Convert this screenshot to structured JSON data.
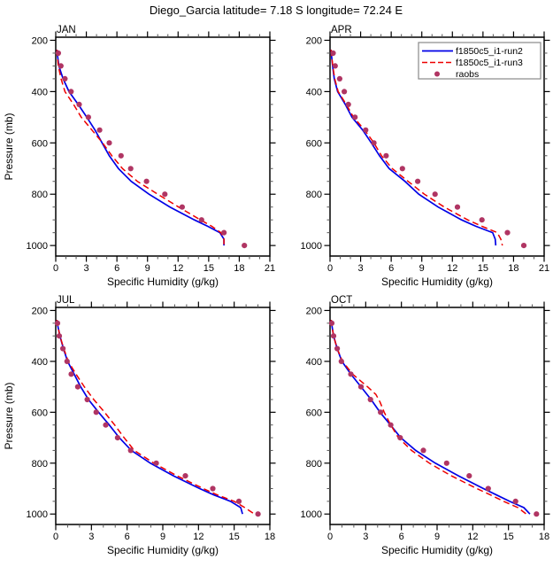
{
  "title": "Diego_Garcia  latitude= 7.18 S longitude= 72.24 E",
  "colors": {
    "run2": "#0000e6",
    "run3": "#ee0000",
    "raobs": "#b03563",
    "axis": "#000000",
    "minor_tick": "#555555",
    "legend_border": "#888888",
    "background": "#ffffff"
  },
  "legend": {
    "position": "top-right-inside-APR-panel",
    "entries": [
      {
        "label": "f1850c5_i1-run2",
        "symbol": "solid-line",
        "color_key": "run2"
      },
      {
        "label": "f1850c5_i1-run3",
        "symbol": "dashed-line",
        "color_key": "run3"
      },
      {
        "label": "raobs",
        "symbol": "dot",
        "color_key": "raobs"
      }
    ]
  },
  "chart_data": [
    {
      "type": "line",
      "title": "JAN",
      "xlabel": "Specific Humidity (g/kg)",
      "ylabel": "Pressure (mb)",
      "xlim": [
        0,
        21
      ],
      "xticks": [
        0,
        3,
        6,
        9,
        12,
        15,
        18,
        21
      ],
      "x_minor_step": 1,
      "ylim": [
        188,
        1041
      ],
      "yticks": [
        200,
        400,
        600,
        800,
        1000
      ],
      "y_minor_step": 50,
      "y_axis_note": "pressure axis inverted, grid off, box frame with outward ticks on all sides",
      "show_legend": false,
      "series": [
        {
          "name": "f1850c5_i1-run2",
          "kind": "line",
          "dash": "solid",
          "color_key": "run2",
          "pressure": [
            237,
            250,
            300,
            350,
            400,
            450,
            500,
            550,
            600,
            650,
            700,
            750,
            800,
            850,
            900,
            925,
            950,
            975,
            1000
          ],
          "q": [
            0.12,
            0.15,
            0.3,
            0.72,
            1.3,
            2.2,
            3.05,
            3.85,
            4.55,
            5.25,
            6.15,
            7.4,
            9.15,
            11.2,
            13.6,
            14.9,
            16.1,
            16.5,
            16.5
          ]
        },
        {
          "name": "f1850c5_i1-run3",
          "kind": "line",
          "dash": "dashed",
          "color_key": "run3",
          "pressure": [
            237,
            250,
            300,
            350,
            400,
            450,
            500,
            550,
            600,
            650,
            700,
            750,
            800,
            850,
            900,
            925,
            950,
            975,
            1000
          ],
          "q": [
            0.12,
            0.14,
            0.25,
            0.52,
            0.9,
            1.75,
            2.5,
            3.55,
            4.6,
            5.5,
            6.55,
            8.0,
            10.0,
            12.05,
            14.2,
            15.3,
            16.2,
            16.5,
            16.5
          ]
        },
        {
          "name": "raobs",
          "kind": "scatter",
          "color_key": "raobs",
          "pressure": [
            250,
            300,
            350,
            400,
            450,
            500,
            550,
            600,
            650,
            700,
            750,
            800,
            850,
            900,
            950,
            1000
          ],
          "q": [
            0.25,
            0.5,
            0.9,
            1.5,
            2.3,
            3.2,
            4.3,
            5.25,
            6.4,
            7.35,
            8.9,
            10.7,
            12.4,
            14.3,
            16.5,
            18.5
          ]
        }
      ]
    },
    {
      "type": "line",
      "title": "APR",
      "xlabel": "Specific Humidity (g/kg)",
      "ylabel": "Pressure (mb)",
      "xlim": [
        0,
        21
      ],
      "xticks": [
        0,
        3,
        6,
        9,
        12,
        15,
        18,
        21
      ],
      "x_minor_step": 1,
      "ylim": [
        188,
        1041
      ],
      "yticks": [
        200,
        400,
        600,
        800,
        1000
      ],
      "y_minor_step": 50,
      "y_axis_note": "pressure axis inverted, grid off, box frame with outward ticks on all sides",
      "show_legend": true,
      "series": [
        {
          "name": "f1850c5_i1-run2",
          "kind": "line",
          "dash": "solid",
          "color_key": "run2",
          "pressure": [
            237,
            250,
            300,
            350,
            400,
            450,
            500,
            550,
            600,
            650,
            700,
            750,
            800,
            850,
            900,
            925,
            950,
            975,
            1000
          ],
          "q": [
            0.1,
            0.12,
            0.25,
            0.42,
            0.75,
            1.5,
            2.15,
            3.2,
            4.05,
            4.85,
            5.8,
            7.35,
            8.7,
            10.6,
            12.9,
            14.3,
            15.95,
            16.2,
            16.25
          ]
        },
        {
          "name": "f1850c5_i1-run3",
          "kind": "line",
          "dash": "dashed",
          "color_key": "run3",
          "pressure": [
            237,
            250,
            300,
            350,
            400,
            450,
            500,
            550,
            600,
            650,
            700,
            750,
            800,
            850,
            900,
            925,
            950,
            975,
            1000
          ],
          "q": [
            0.1,
            0.12,
            0.27,
            0.46,
            0.8,
            1.6,
            2.3,
            3.4,
            4.3,
            5.05,
            6.1,
            7.65,
            9.25,
            11.2,
            13.5,
            14.9,
            16.4,
            16.75,
            16.9
          ]
        },
        {
          "name": "raobs",
          "kind": "scatter",
          "color_key": "raobs",
          "pressure": [
            250,
            300,
            350,
            400,
            450,
            500,
            550,
            600,
            650,
            700,
            750,
            800,
            850,
            900,
            950,
            1000
          ],
          "q": [
            0.3,
            0.5,
            0.95,
            1.4,
            1.8,
            2.45,
            3.5,
            4.3,
            5.5,
            7.1,
            8.6,
            10.3,
            12.5,
            14.9,
            17.4,
            19.0
          ]
        }
      ]
    },
    {
      "type": "line",
      "title": "JUL",
      "xlabel": "Specific Humidity (g/kg)",
      "ylabel": "Pressure (mb)",
      "xlim": [
        0,
        18
      ],
      "xticks": [
        0,
        3,
        6,
        9,
        12,
        15,
        18
      ],
      "x_minor_step": 1,
      "ylim": [
        188,
        1041
      ],
      "yticks": [
        200,
        400,
        600,
        800,
        1000
      ],
      "y_minor_step": 50,
      "y_axis_note": "pressure axis inverted, grid off, box frame with outward ticks on all sides",
      "show_legend": false,
      "series": [
        {
          "name": "f1850c5_i1-run2",
          "kind": "line",
          "dash": "solid",
          "color_key": "run2",
          "pressure": [
            237,
            250,
            300,
            350,
            400,
            450,
            500,
            550,
            600,
            650,
            700,
            750,
            800,
            850,
            900,
            925,
            950,
            975,
            1000
          ],
          "q": [
            0.1,
            0.13,
            0.35,
            0.65,
            1.0,
            1.55,
            2.1,
            2.75,
            3.6,
            4.5,
            5.35,
            6.35,
            7.95,
            9.9,
            12.1,
            13.3,
            14.7,
            15.55,
            15.7
          ]
        },
        {
          "name": "f1850c5_i1-run3",
          "kind": "line",
          "dash": "dashed",
          "color_key": "run3",
          "pressure": [
            237,
            250,
            300,
            350,
            400,
            450,
            500,
            550,
            600,
            650,
            700,
            750,
            800,
            850,
            900,
            925,
            950,
            975,
            1000
          ],
          "q": [
            0.1,
            0.13,
            0.35,
            0.68,
            1.05,
            1.7,
            2.4,
            3.2,
            4.1,
            4.95,
            5.75,
            6.6,
            8.25,
            10.2,
            12.4,
            13.6,
            15.0,
            15.9,
            16.7
          ]
        },
        {
          "name": "raobs",
          "kind": "scatter",
          "color_key": "raobs",
          "pressure": [
            250,
            300,
            350,
            400,
            450,
            500,
            550,
            600,
            650,
            700,
            750,
            800,
            850,
            900,
            950,
            1000
          ],
          "q": [
            0.15,
            0.3,
            0.6,
            0.95,
            1.3,
            1.85,
            2.65,
            3.4,
            4.2,
            5.2,
            6.3,
            8.45,
            10.9,
            13.2,
            15.4,
            17.0
          ]
        }
      ]
    },
    {
      "type": "line",
      "title": "OCT",
      "xlabel": "Specific Humidity (g/kg)",
      "ylabel": "Pressure (mb)",
      "xlim": [
        0,
        18
      ],
      "xticks": [
        0,
        3,
        6,
        9,
        12,
        15,
        18
      ],
      "x_minor_step": 1,
      "ylim": [
        188,
        1041
      ],
      "yticks": [
        200,
        400,
        600,
        800,
        1000
      ],
      "y_minor_step": 50,
      "y_axis_note": "pressure axis inverted, grid off, box frame with outward ticks on all sides",
      "show_legend": false,
      "series": [
        {
          "name": "f1850c5_i1-run2",
          "kind": "line",
          "dash": "solid",
          "color_key": "run2",
          "pressure": [
            237,
            250,
            300,
            350,
            400,
            450,
            500,
            550,
            600,
            650,
            700,
            750,
            800,
            850,
            900,
            925,
            950,
            975,
            1000
          ],
          "q": [
            0.1,
            0.13,
            0.3,
            0.6,
            1.0,
            1.75,
            2.6,
            3.45,
            4.2,
            5.08,
            5.95,
            7.2,
            8.85,
            10.8,
            12.9,
            14.0,
            15.1,
            16.3,
            16.8
          ]
        },
        {
          "name": "f1850c5_i1-run3",
          "kind": "line",
          "dash": "dashed",
          "color_key": "run3",
          "pressure": [
            237,
            250,
            300,
            350,
            400,
            450,
            500,
            530,
            560,
            600,
            650,
            700,
            750,
            800,
            850,
            900,
            925,
            950,
            975,
            1000
          ],
          "q": [
            0.1,
            0.13,
            0.3,
            0.6,
            1.05,
            1.9,
            3.15,
            3.85,
            4.2,
            4.55,
            5.1,
            5.75,
            6.85,
            8.35,
            10.2,
            12.35,
            13.5,
            14.6,
            15.8,
            16.5
          ]
        },
        {
          "name": "raobs",
          "kind": "scatter",
          "color_key": "raobs",
          "pressure": [
            250,
            300,
            350,
            400,
            450,
            500,
            550,
            600,
            650,
            700,
            750,
            800,
            850,
            900,
            950,
            1000
          ],
          "q": [
            0.15,
            0.3,
            0.6,
            0.95,
            1.75,
            2.6,
            3.4,
            4.25,
            5.1,
            5.9,
            7.85,
            9.8,
            11.7,
            13.3,
            15.6,
            17.35
          ]
        }
      ]
    }
  ]
}
